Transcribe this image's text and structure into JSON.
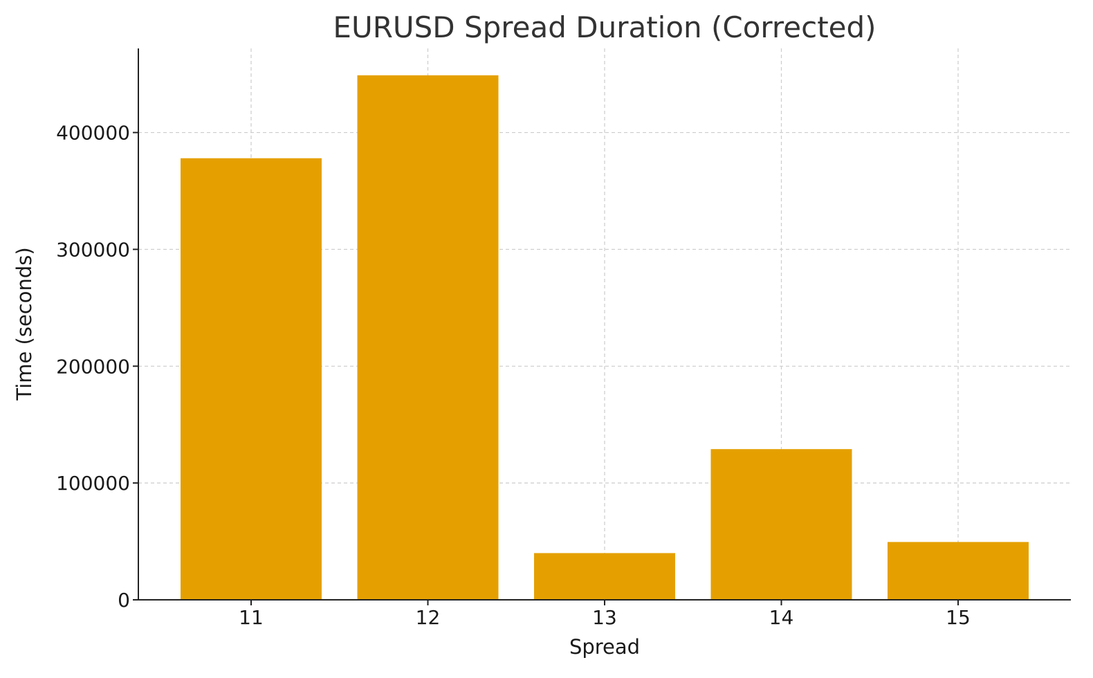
{
  "chart_data": {
    "type": "bar",
    "title": "EURUSD Spread Duration (Corrected)",
    "xlabel": "Spread",
    "ylabel": "Time (seconds)",
    "categories": [
      "11",
      "12",
      "13",
      "14",
      "15"
    ],
    "values": [
      378000,
      449000,
      40000,
      129000,
      49500
    ],
    "ylim": [
      0,
      472000
    ],
    "yticks": [
      0,
      100000,
      200000,
      300000,
      400000
    ],
    "ytick_labels": [
      "0",
      "100000",
      "200000",
      "300000",
      "400000"
    ],
    "grid": true,
    "bar_color": "#E5A000"
  }
}
